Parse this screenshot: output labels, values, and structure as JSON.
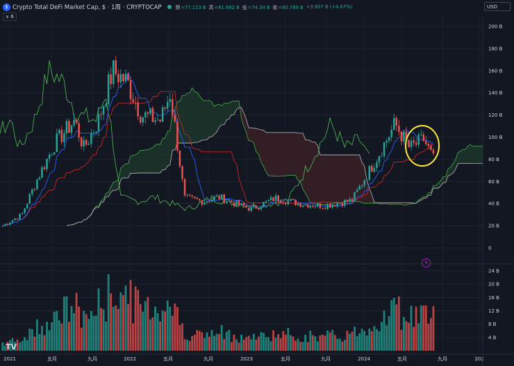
{
  "header": {
    "title": "Crypto Total DeFi Market Cap, $ · 1周 · CRYPTOCAP",
    "open_label": "開",
    "open_value": "=77.113 B",
    "high_label": "高",
    "high_value": "=81.892 B",
    "low_label": "低",
    "low_value": "=74.34 B",
    "close_label": "收",
    "close_value": "=80.789 B",
    "change_value": "+3.607 B (+4.67%)",
    "indicator_count": "6",
    "currency": "USD",
    "logo_glyph": "$"
  },
  "colors": {
    "up": "#26a69a",
    "down": "#ef5350",
    "background": "#131722",
    "cloud_bull": "#1e3a2c",
    "cloud_bear": "#3d2226",
    "highlight_circle": "#ffeb3b"
  },
  "icons": {
    "alert": "lightning-icon",
    "tv_logo": "tradingview-logo"
  },
  "chart_data": {
    "type": "candlestick",
    "title": "Crypto Total DeFi Market Cap",
    "price_axis": {
      "unit": "B USD",
      "ylim": [
        0,
        200
      ],
      "ticks": [
        "200 B",
        "180 B",
        "160 B",
        "140 B",
        "120 B",
        "100 B",
        "80 B",
        "60 B",
        "40 B",
        "20 B",
        "0"
      ]
    },
    "volume_axis": {
      "ylim": [
        0,
        24
      ],
      "ticks": [
        "24 B",
        "20 B",
        "16 B",
        "12 B",
        "8 B",
        "4 B"
      ]
    },
    "x_ticks": [
      "2021",
      "五月",
      "九月",
      "2022",
      "五月",
      "九月",
      "2023",
      "五月",
      "九月",
      "2024",
      "五月",
      "九月",
      "202"
    ],
    "grid": true,
    "series": [
      {
        "name": "candles"
      },
      {
        "name": "volume"
      },
      {
        "name": "ichimoku_cloud"
      },
      {
        "name": "conversion_line"
      },
      {
        "name": "base_line"
      },
      {
        "name": "lagging_span"
      }
    ],
    "price_keypoints": [
      {
        "x": 0.0,
        "y": 20
      },
      {
        "x": 0.04,
        "y": 30
      },
      {
        "x": 0.07,
        "y": 60
      },
      {
        "x": 0.11,
        "y": 95
      },
      {
        "x": 0.15,
        "y": 115
      },
      {
        "x": 0.17,
        "y": 90
      },
      {
        "x": 0.2,
        "y": 115
      },
      {
        "x": 0.23,
        "y": 160
      },
      {
        "x": 0.26,
        "y": 150
      },
      {
        "x": 0.29,
        "y": 120
      },
      {
        "x": 0.33,
        "y": 115
      },
      {
        "x": 0.35,
        "y": 140
      },
      {
        "x": 0.36,
        "y": 110
      },
      {
        "x": 0.38,
        "y": 45
      },
      {
        "x": 0.42,
        "y": 42
      },
      {
        "x": 0.45,
        "y": 46
      },
      {
        "x": 0.5,
        "y": 38
      },
      {
        "x": 0.52,
        "y": 35
      },
      {
        "x": 0.57,
        "y": 45
      },
      {
        "x": 0.62,
        "y": 40
      },
      {
        "x": 0.67,
        "y": 38
      },
      {
        "x": 0.73,
        "y": 43
      },
      {
        "x": 0.78,
        "y": 80
      },
      {
        "x": 0.82,
        "y": 112
      },
      {
        "x": 0.85,
        "y": 90
      },
      {
        "x": 0.88,
        "y": 98
      },
      {
        "x": 0.9,
        "y": 80
      }
    ],
    "annotation": {
      "type": "circle",
      "color": "yellow",
      "around": "2024 六月 price drop"
    }
  }
}
